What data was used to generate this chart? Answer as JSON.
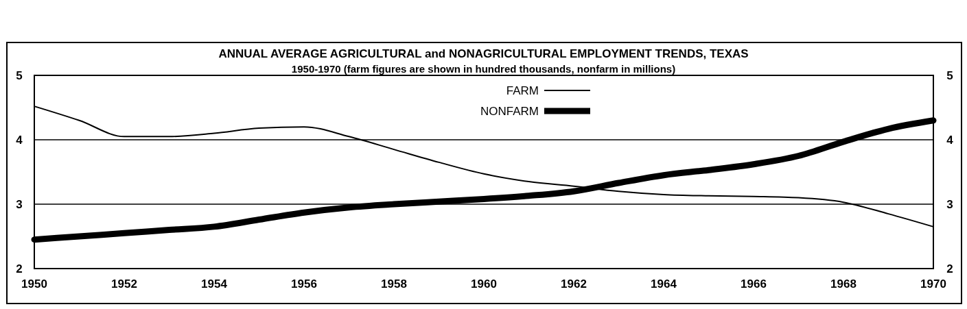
{
  "chart_data": {
    "type": "line",
    "title": "ANNUAL AVERAGE AGRICULTURAL and NONAGRICULTURAL EMPLOYMENT TRENDS, TEXAS",
    "subtitle": "1950-1970 (farm figures are shown in hundred thousands, nonfarm in millions)",
    "x": [
      1950,
      1951,
      1952,
      1953,
      1954,
      1955,
      1956,
      1957,
      1958,
      1959,
      1960,
      1961,
      1962,
      1963,
      1964,
      1965,
      1966,
      1967,
      1968,
      1969,
      1970
    ],
    "series": [
      {
        "name": "FARM",
        "color": "#000000",
        "values": [
          4.52,
          4.3,
          4.05,
          4.05,
          4.1,
          4.18,
          4.2,
          4.05,
          3.85,
          3.65,
          3.47,
          3.35,
          3.28,
          3.2,
          3.15,
          3.13,
          3.12,
          3.1,
          3.03,
          2.85,
          2.65
        ]
      },
      {
        "name": "NONFARM",
        "color": "#000000",
        "values": [
          2.45,
          2.5,
          2.55,
          2.6,
          2.65,
          2.76,
          2.87,
          2.95,
          3.0,
          3.04,
          3.08,
          3.13,
          3.2,
          3.33,
          3.45,
          3.53,
          3.62,
          3.75,
          3.97,
          4.17,
          4.3
        ]
      }
    ],
    "xlim": [
      1950,
      1970
    ],
    "xticks": [
      1950,
      1952,
      1954,
      1956,
      1958,
      1960,
      1962,
      1964,
      1966,
      1968,
      1970
    ],
    "ylim": [
      2,
      5
    ],
    "yticks": [
      2,
      3,
      4,
      5
    ],
    "y2lim": [
      2,
      5
    ],
    "y2ticks": [
      2,
      3,
      4,
      5
    ],
    "grid": "y",
    "legend": "top",
    "line_style": "solid"
  }
}
